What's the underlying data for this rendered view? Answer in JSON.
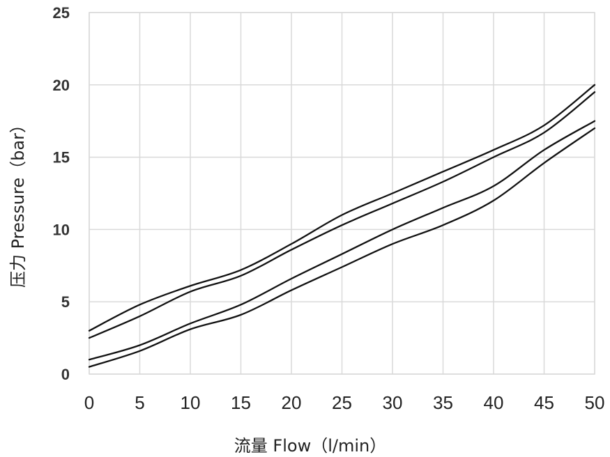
{
  "chart_data": {
    "type": "line",
    "xlabel": "流量 Flow（l/min）",
    "ylabel": "压力 Pressure（bar）",
    "xlim": [
      0,
      50
    ],
    "ylim": [
      0,
      25
    ],
    "x_ticks": [
      "0",
      "5",
      "10",
      "15",
      "20",
      "25",
      "30",
      "35",
      "40",
      "45",
      "50"
    ],
    "y_ticks": [
      "0",
      "5",
      "10",
      "15",
      "20",
      "25"
    ],
    "grid": true,
    "line_color": "#111111",
    "grid_color": "#d9d9d9",
    "series": [
      {
        "x": [
          0,
          5,
          10,
          15,
          20,
          25,
          30,
          35,
          40,
          45,
          50
        ],
        "y": [
          3.0,
          4.8,
          6.1,
          7.2,
          9.0,
          11.0,
          12.5,
          14.0,
          15.5,
          17.2,
          20.0
        ]
      },
      {
        "x": [
          0,
          5,
          10,
          15,
          20,
          25,
          30,
          35,
          40,
          45,
          50
        ],
        "y": [
          2.5,
          4.0,
          5.7,
          6.8,
          8.6,
          10.3,
          11.8,
          13.3,
          15.0,
          16.7,
          19.5
        ]
      },
      {
        "x": [
          0,
          5,
          10,
          15,
          20,
          25,
          30,
          35,
          40,
          45,
          50
        ],
        "y": [
          1.0,
          2.0,
          3.5,
          4.8,
          6.6,
          8.3,
          10.0,
          11.5,
          13.0,
          15.5,
          17.5
        ]
      },
      {
        "x": [
          0,
          5,
          10,
          15,
          20,
          25,
          30,
          35,
          40,
          45,
          50
        ],
        "y": [
          0.5,
          1.6,
          3.1,
          4.1,
          5.8,
          7.4,
          9.0,
          10.3,
          12.0,
          14.6,
          17.0
        ]
      }
    ]
  }
}
